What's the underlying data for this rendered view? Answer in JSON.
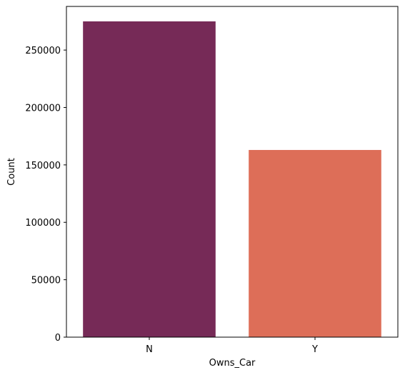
{
  "chart_data": {
    "type": "bar",
    "title": "",
    "xlabel": "Owns_Car",
    "ylabel": "Count",
    "categories": [
      "N",
      "Y"
    ],
    "values": [
      275000,
      163000
    ],
    "colors": [
      "#762a57",
      "#dd6e58"
    ],
    "ylim": [
      0,
      288000
    ],
    "yticks": [
      0,
      50000,
      100000,
      150000,
      200000,
      250000
    ],
    "ytick_labels": [
      "0",
      "50000",
      "100000",
      "150000",
      "200000",
      "250000"
    ],
    "grid": false,
    "legend": "none"
  }
}
